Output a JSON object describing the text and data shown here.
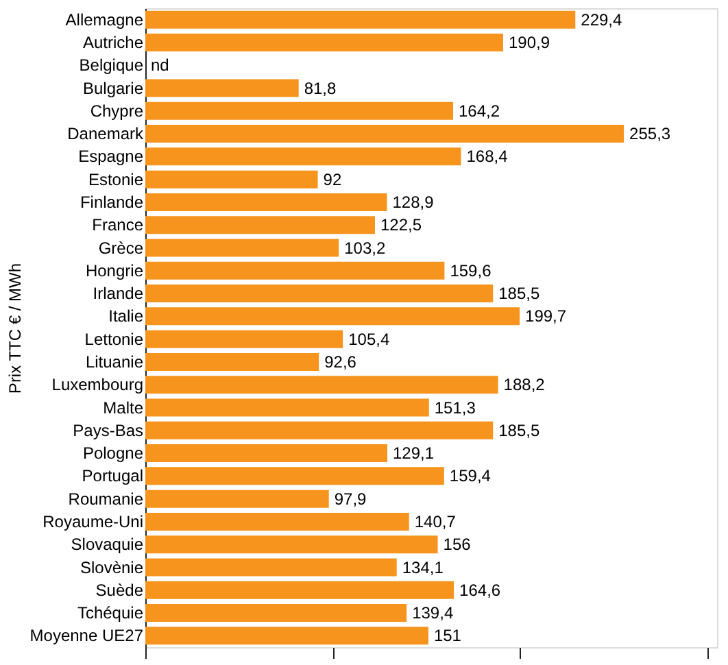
{
  "chart_data": {
    "type": "bar",
    "orientation": "horizontal",
    "ylabel": "Prix TTC € / MWh",
    "categories": [
      "Allemagne",
      "Autriche",
      "Belgique",
      "Bulgarie",
      "Chypre",
      "Danemark",
      "Espagne",
      "Estonie",
      "Finlande",
      "France",
      "Grèce",
      "Hongrie",
      "Irlande",
      "Italie",
      "Lettonie",
      "Lituanie",
      "Luxembourg",
      "Malte",
      "Pays-Bas",
      "Pologne",
      "Portugal",
      "Roumanie",
      "Royaume-Uni",
      "Slovaquie",
      "Slovènie",
      "Suède",
      "Tchéquie",
      "Moyenne UE27"
    ],
    "values": [
      229.4,
      190.9,
      null,
      81.8,
      164.2,
      255.3,
      168.4,
      92,
      128.9,
      122.5,
      103.2,
      159.6,
      185.5,
      199.7,
      105.4,
      92.6,
      188.2,
      151.3,
      185.5,
      129.1,
      159.4,
      97.9,
      140.7,
      156,
      134.1,
      164.6,
      139.4,
      151
    ],
    "value_labels": [
      "229,4",
      "190,9",
      "nd",
      "81,8",
      "164,2",
      "255,3",
      "168,4",
      "92",
      "128,9",
      "122,5",
      "103,2",
      "159,6",
      "185,5",
      "199,7",
      "105,4",
      "92,6",
      "188,2",
      "151,3",
      "185,5",
      "129,1",
      "159,4",
      "97,9",
      "140,7",
      "156",
      "134,1",
      "164,6",
      "139,4",
      "151"
    ],
    "color": "#f7941d",
    "xlim": [
      0,
      305
    ],
    "xticks": [
      {
        "value": 0,
        "label": null
      },
      {
        "value": 100,
        "label": null
      },
      {
        "value": 200,
        "label": null
      },
      {
        "value": 300,
        "label": null
      }
    ],
    "tick_labels": "y",
    "grid": false
  }
}
